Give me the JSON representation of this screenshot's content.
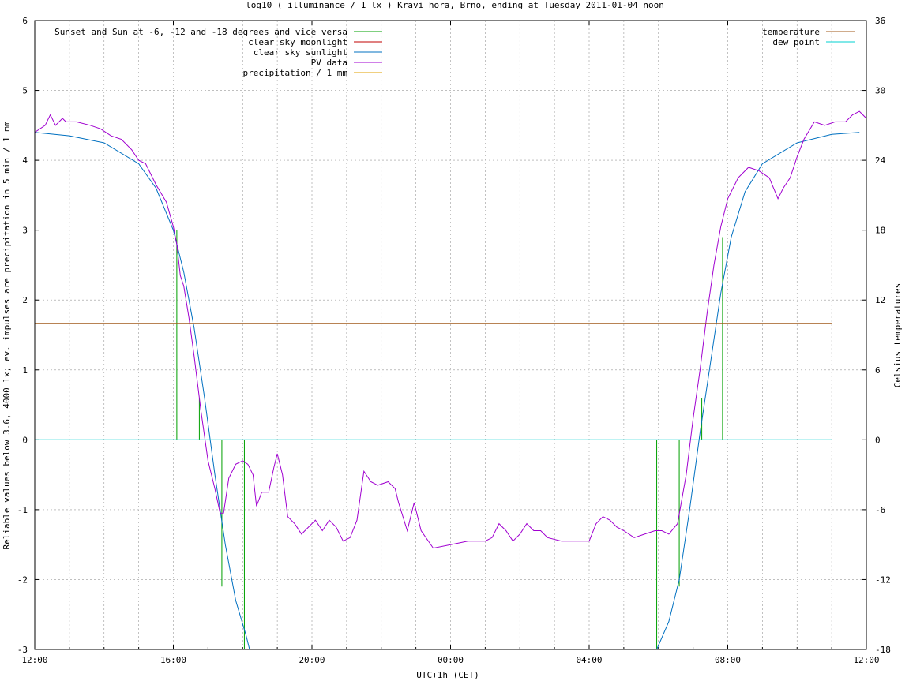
{
  "chart_data": {
    "type": "line",
    "title": "log10 ( illuminance / 1 lx ) Kravi hora, Brno, ending at Tuesday 2011-01-04 noon",
    "xlabel": "UTC+1h (CET)",
    "ylabel": "Reliable values below 3.6, 4000 lx; ev. impulses are precipitation in 5 min / 1 mm",
    "y2label": "Celsius temperatures",
    "xlim": [
      0,
      24
    ],
    "x_unit": "hours since 2011-01-03 12:00 (UTC+1h)",
    "ylim": [
      -3,
      6
    ],
    "y2lim": [
      -18,
      36
    ],
    "grid": true,
    "x_ticks": [
      {
        "v": 0,
        "label": "12:00"
      },
      {
        "v": 4,
        "label": "16:00"
      },
      {
        "v": 8,
        "label": "20:00"
      },
      {
        "v": 12,
        "label": "00:00"
      },
      {
        "v": 16,
        "label": "04:00"
      },
      {
        "v": 20,
        "label": "08:00"
      },
      {
        "v": 24,
        "label": "12:00"
      }
    ],
    "y_ticks": [
      "-3",
      "-2",
      "-1",
      "0",
      "1",
      "2",
      "3",
      "4",
      "5",
      "6"
    ],
    "y2_ticks": [
      "-18",
      "-12",
      "-6",
      "0",
      "6",
      "12",
      "18",
      "24",
      "30",
      "36"
    ],
    "legend_left": [
      {
        "name": "Sunset and Sun at -6, -12 and -18 degrees and vice versa",
        "color": "#00a000"
      },
      {
        "name": "clear sky moonlight",
        "color": "#c00000"
      },
      {
        "name": "clear sky sunlight",
        "color": "#0070c0"
      },
      {
        "name": "PV data",
        "color": "#a000d0"
      },
      {
        "name": "precipitation / 1 mm",
        "color": "#e0a000"
      }
    ],
    "legend_right": [
      {
        "name": "temperature",
        "color": "#a05a1a"
      },
      {
        "name": "dew point",
        "color": "#00d0d0"
      }
    ],
    "series": [
      {
        "name": "Sunset and Sun at -6, -12 and -18 degrees and vice versa",
        "color": "#00a000",
        "type": "impulses",
        "points": [
          [
            4.1,
            3.0
          ],
          [
            4.75,
            0.6
          ],
          [
            5.4,
            -2.1
          ],
          [
            6.05,
            -3.0
          ],
          [
            17.95,
            -3.0
          ],
          [
            18.6,
            -2.1
          ],
          [
            19.25,
            0.6
          ],
          [
            19.85,
            2.9
          ]
        ]
      },
      {
        "name": "clear sky sunlight",
        "color": "#0070c0",
        "points": [
          [
            0,
            4.4
          ],
          [
            1,
            4.35
          ],
          [
            2,
            4.25
          ],
          [
            3,
            3.95
          ],
          [
            3.5,
            3.6
          ],
          [
            4,
            3.0
          ],
          [
            4.3,
            2.4
          ],
          [
            4.6,
            1.6
          ],
          [
            4.9,
            0.6
          ],
          [
            5.2,
            -0.5
          ],
          [
            5.5,
            -1.5
          ],
          [
            5.8,
            -2.3
          ],
          [
            6.1,
            -2.8
          ],
          [
            6.2,
            -3.0
          ],
          [
            17.95,
            -3.0
          ],
          [
            18.3,
            -2.6
          ],
          [
            18.6,
            -2.0
          ],
          [
            18.9,
            -1.0
          ],
          [
            19.2,
            0.1
          ],
          [
            19.5,
            1.1
          ],
          [
            19.8,
            2.1
          ],
          [
            20.1,
            2.9
          ],
          [
            20.5,
            3.55
          ],
          [
            21,
            3.95
          ],
          [
            22,
            4.25
          ],
          [
            23,
            4.37
          ],
          [
            23.8,
            4.4
          ]
        ]
      },
      {
        "name": "PV data",
        "color": "#a000d0",
        "points": [
          [
            0,
            4.4
          ],
          [
            0.3,
            4.5
          ],
          [
            0.45,
            4.65
          ],
          [
            0.6,
            4.5
          ],
          [
            0.8,
            4.6
          ],
          [
            0.9,
            4.55
          ],
          [
            1.2,
            4.55
          ],
          [
            1.6,
            4.5
          ],
          [
            1.9,
            4.45
          ],
          [
            2.2,
            4.35
          ],
          [
            2.5,
            4.3
          ],
          [
            2.8,
            4.15
          ],
          [
            3.0,
            4.0
          ],
          [
            3.2,
            3.95
          ],
          [
            3.5,
            3.65
          ],
          [
            3.8,
            3.4
          ],
          [
            4.0,
            3.05
          ],
          [
            4.1,
            2.8
          ],
          [
            4.2,
            2.35
          ],
          [
            4.3,
            2.2
          ],
          [
            4.45,
            1.75
          ],
          [
            4.6,
            1.2
          ],
          [
            4.8,
            0.4
          ],
          [
            5.0,
            -0.3
          ],
          [
            5.2,
            -0.7
          ],
          [
            5.35,
            -1.05
          ],
          [
            5.45,
            -1.05
          ],
          [
            5.6,
            -0.55
          ],
          [
            5.8,
            -0.35
          ],
          [
            6.0,
            -0.3
          ],
          [
            6.15,
            -0.35
          ],
          [
            6.3,
            -0.5
          ],
          [
            6.4,
            -0.95
          ],
          [
            6.55,
            -0.75
          ],
          [
            6.75,
            -0.75
          ],
          [
            6.9,
            -0.4
          ],
          [
            7.0,
            -0.2
          ],
          [
            7.15,
            -0.5
          ],
          [
            7.3,
            -1.1
          ],
          [
            7.5,
            -1.2
          ],
          [
            7.7,
            -1.35
          ],
          [
            7.9,
            -1.25
          ],
          [
            8.1,
            -1.15
          ],
          [
            8.3,
            -1.3
          ],
          [
            8.5,
            -1.15
          ],
          [
            8.7,
            -1.25
          ],
          [
            8.9,
            -1.45
          ],
          [
            9.1,
            -1.4
          ],
          [
            9.3,
            -1.15
          ],
          [
            9.5,
            -0.45
          ],
          [
            9.7,
            -0.6
          ],
          [
            9.9,
            -0.65
          ],
          [
            10.2,
            -0.6
          ],
          [
            10.4,
            -0.7
          ],
          [
            10.5,
            -0.9
          ],
          [
            10.75,
            -1.3
          ],
          [
            10.95,
            -0.9
          ],
          [
            11.15,
            -1.3
          ],
          [
            11.5,
            -1.55
          ],
          [
            12.0,
            -1.5
          ],
          [
            12.5,
            -1.45
          ],
          [
            13.0,
            -1.45
          ],
          [
            13.2,
            -1.4
          ],
          [
            13.4,
            -1.2
          ],
          [
            13.6,
            -1.3
          ],
          [
            13.8,
            -1.45
          ],
          [
            14.0,
            -1.35
          ],
          [
            14.2,
            -1.2
          ],
          [
            14.4,
            -1.3
          ],
          [
            14.6,
            -1.3
          ],
          [
            14.8,
            -1.4
          ],
          [
            15.2,
            -1.45
          ],
          [
            15.6,
            -1.45
          ],
          [
            16.0,
            -1.45
          ],
          [
            16.2,
            -1.2
          ],
          [
            16.4,
            -1.1
          ],
          [
            16.6,
            -1.15
          ],
          [
            16.8,
            -1.25
          ],
          [
            17.0,
            -1.3
          ],
          [
            17.3,
            -1.4
          ],
          [
            17.6,
            -1.35
          ],
          [
            17.9,
            -1.3
          ],
          [
            18.1,
            -1.3
          ],
          [
            18.3,
            -1.35
          ],
          [
            18.55,
            -1.2
          ],
          [
            18.8,
            -0.5
          ],
          [
            19.0,
            0.3
          ],
          [
            19.2,
            1.0
          ],
          [
            19.4,
            1.8
          ],
          [
            19.6,
            2.5
          ],
          [
            19.8,
            3.05
          ],
          [
            20.0,
            3.45
          ],
          [
            20.3,
            3.75
          ],
          [
            20.6,
            3.9
          ],
          [
            20.9,
            3.85
          ],
          [
            21.2,
            3.75
          ],
          [
            21.45,
            3.45
          ],
          [
            21.6,
            3.6
          ],
          [
            21.8,
            3.75
          ],
          [
            22.0,
            4.05
          ],
          [
            22.2,
            4.3
          ],
          [
            22.5,
            4.55
          ],
          [
            22.8,
            4.5
          ],
          [
            23.1,
            4.55
          ],
          [
            23.4,
            4.55
          ],
          [
            23.6,
            4.65
          ],
          [
            23.8,
            4.7
          ],
          [
            24.0,
            4.6
          ]
        ]
      },
      {
        "name": "temperature",
        "color": "#a05a1a",
        "axis": "y2",
        "points": [
          [
            0,
            10.0
          ],
          [
            23.0,
            10.0
          ]
        ]
      },
      {
        "name": "dew point",
        "color": "#00d0d0",
        "axis": "y2",
        "points": [
          [
            0,
            0.0
          ],
          [
            23.0,
            0.0
          ]
        ]
      }
    ]
  }
}
